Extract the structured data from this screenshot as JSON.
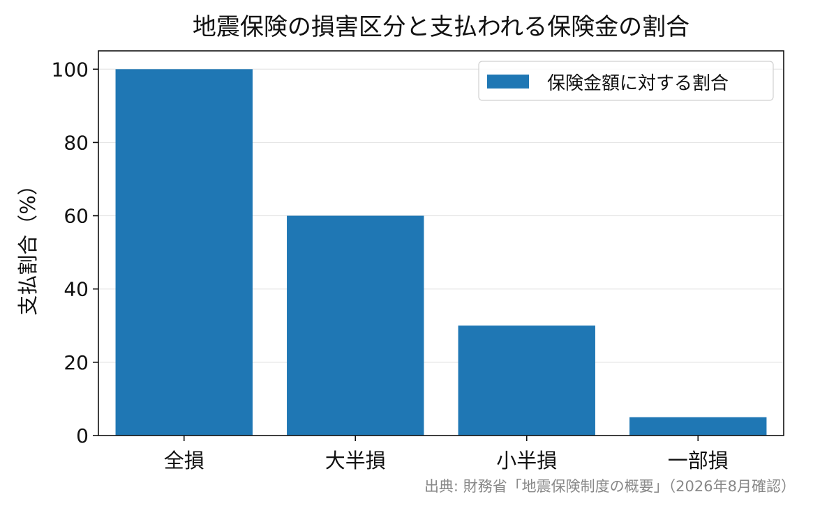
{
  "chart_data": {
    "type": "bar",
    "title": "地震保険の損害区分と支払われる保険金の割合",
    "xlabel": "",
    "ylabel": "支払割合（%）",
    "categories": [
      "全損",
      "大半損",
      "小半損",
      "一部損"
    ],
    "series": [
      {
        "name": "保険金額に対する割合",
        "values": [
          100,
          60,
          30,
          5
        ],
        "color": "#1f77b4"
      }
    ],
    "ylim": [
      0,
      105
    ],
    "yticks": [
      0,
      20,
      40,
      60,
      80,
      100
    ],
    "grid": "y",
    "legend": "top-right"
  },
  "source_note": "出典: 財務省「地震保険制度の概要」（2026年8月確認）",
  "colors": {
    "bar": "#1f77b4",
    "grid": "#e6e6e6",
    "note": "#888888"
  }
}
